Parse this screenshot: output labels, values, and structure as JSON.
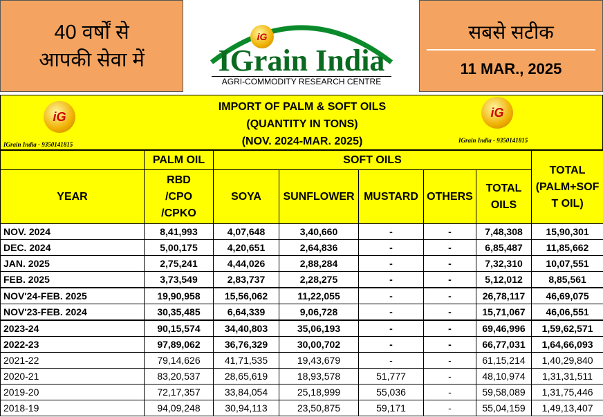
{
  "header": {
    "left_lines": [
      "40 वर्षों से",
      "आपकी सेवा में"
    ],
    "logo_mark": "iG",
    "logo_title": "IGrain India",
    "logo_subtitle": "AGRI-COMMODITY RESEARCH CENTRE",
    "right_title": "सबसे सटीक",
    "date": "11 MAR., 2025"
  },
  "table": {
    "title_lines": [
      "IMPORT OF PALM & SOFT OILS",
      "(QUANTITY IN TONS)",
      "(NOV. 2024-MAR. 2025)"
    ],
    "watermark_caption": "IGrain India - 9350141815",
    "groups": [
      "PALM OIL",
      "SOFT OILS"
    ],
    "columns": [
      [
        "YEAR"
      ],
      [
        "RBD",
        "/CPO",
        "/CPKO"
      ],
      [
        "SOYA"
      ],
      [
        "SUNFLOWER"
      ],
      [
        "MUSTARD"
      ],
      [
        "OTHERS"
      ],
      [
        "TOTAL",
        "OILS"
      ],
      [
        "TOTAL",
        "(PALM+SOF",
        "T OIL)"
      ]
    ],
    "rows": [
      [
        "NOV. 2024",
        "8,41,993",
        "4,07,648",
        "3,40,660",
        "-",
        "-",
        "7,48,308",
        "15,90,301"
      ],
      [
        "DEC. 2024",
        "5,00,175",
        "4,20,651",
        "2,64,836",
        "-",
        "-",
        "6,85,487",
        "11,85,662"
      ],
      [
        "JAN. 2025",
        "2,75,241",
        "4,44,026",
        "2,88,284",
        "-",
        "-",
        "7,32,310",
        "10,07,551"
      ],
      [
        "FEB. 2025",
        "3,73,549",
        "2,83,737",
        "2,28,275",
        "-",
        "-",
        "5,12,012",
        "8,85,561"
      ],
      [
        "NOV'24-FEB. 2025",
        "19,90,958",
        "15,56,062",
        "11,22,055",
        "-",
        "-",
        "26,78,117",
        "46,69,075"
      ],
      [
        "NOV'23-FEB. 2024",
        "30,35,485",
        "6,64,339",
        "9,06,728",
        "-",
        "-",
        "15,71,067",
        "46,06,551"
      ],
      [
        "2023-24",
        "90,15,574",
        "34,40,803",
        "35,06,193",
        "-",
        "-",
        "69,46,996",
        "1,59,62,571"
      ],
      [
        "2022-23",
        "97,89,062",
        "36,76,329",
        "30,00,702",
        "-",
        "-",
        "66,77,031",
        "1,64,66,093"
      ],
      [
        "2021-22",
        "79,14,626",
        "41,71,535",
        "19,43,679",
        "-",
        "-",
        "61,15,214",
        "1,40,29,840"
      ],
      [
        "2020-21",
        "83,20,537",
        "28,65,619",
        "18,93,578",
        "51,777",
        "-",
        "48,10,974",
        "1,31,31,511"
      ],
      [
        "2019-20",
        "72,17,357",
        "33,84,054",
        "25,18,999",
        "55,036",
        "-",
        "59,58,089",
        "1,31,75,446"
      ],
      [
        "2018-19",
        "94,09,248",
        "30,94,113",
        "23,50,875",
        "59,171",
        "-",
        "55,04,159",
        "1,49,13,407"
      ]
    ]
  }
}
